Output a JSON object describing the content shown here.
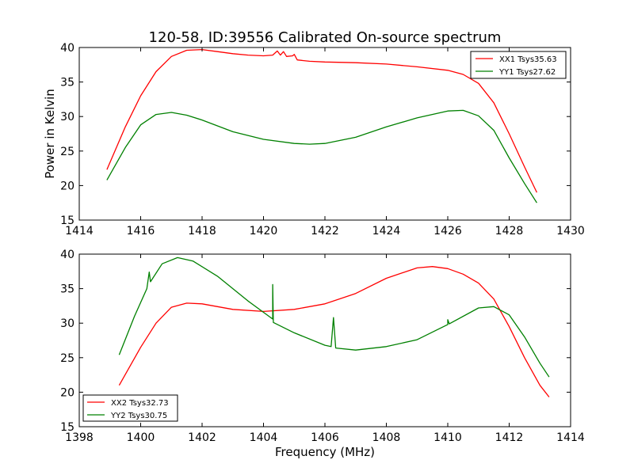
{
  "chart_data": [
    {
      "type": "line",
      "title": "120-58, ID:39556 Calibrated On-source spectrum",
      "xlabel": "",
      "ylabel": "Power in Kelvin",
      "xlim": [
        1414,
        1430
      ],
      "ylim": [
        15,
        40
      ],
      "xticks": [
        1414,
        1416,
        1418,
        1420,
        1422,
        1424,
        1426,
        1428,
        1430
      ],
      "yticks": [
        15,
        20,
        25,
        30,
        35,
        40
      ],
      "legend_position": "top-right",
      "series": [
        {
          "name": "XX1 Tsys35.63",
          "color": "#ff0000",
          "points": [
            [
              1414.9,
              22.3
            ],
            [
              1415.5,
              28.5
            ],
            [
              1416.0,
              33.0
            ],
            [
              1416.5,
              36.5
            ],
            [
              1417.0,
              38.7
            ],
            [
              1417.5,
              39.6
            ],
            [
              1418.0,
              39.7
            ],
            [
              1418.5,
              39.4
            ],
            [
              1419.0,
              39.1
            ],
            [
              1419.5,
              38.9
            ],
            [
              1420.0,
              38.8
            ],
            [
              1420.3,
              38.9
            ],
            [
              1420.45,
              39.5
            ],
            [
              1420.55,
              38.9
            ],
            [
              1420.65,
              39.4
            ],
            [
              1420.75,
              38.7
            ],
            [
              1420.95,
              38.8
            ],
            [
              1421.0,
              39.0
            ],
            [
              1421.1,
              38.2
            ],
            [
              1421.5,
              38.0
            ],
            [
              1422.0,
              37.9
            ],
            [
              1423.0,
              37.8
            ],
            [
              1424.0,
              37.6
            ],
            [
              1425.0,
              37.2
            ],
            [
              1426.0,
              36.7
            ],
            [
              1426.5,
              36.1
            ],
            [
              1427.0,
              34.8
            ],
            [
              1427.5,
              32.0
            ],
            [
              1428.0,
              27.5
            ],
            [
              1428.5,
              22.7
            ],
            [
              1428.9,
              19.0
            ]
          ]
        },
        {
          "name": "YY1 Tsys27.62",
          "color": "#008000",
          "points": [
            [
              1414.9,
              20.8
            ],
            [
              1415.5,
              25.5
            ],
            [
              1416.0,
              28.8
            ],
            [
              1416.5,
              30.3
            ],
            [
              1417.0,
              30.6
            ],
            [
              1417.5,
              30.2
            ],
            [
              1418.0,
              29.5
            ],
            [
              1419.0,
              27.8
            ],
            [
              1420.0,
              26.7
            ],
            [
              1421.0,
              26.1
            ],
            [
              1421.5,
              26.0
            ],
            [
              1422.0,
              26.1
            ],
            [
              1423.0,
              27.0
            ],
            [
              1424.0,
              28.5
            ],
            [
              1425.0,
              29.8
            ],
            [
              1426.0,
              30.8
            ],
            [
              1426.5,
              30.9
            ],
            [
              1427.0,
              30.1
            ],
            [
              1427.5,
              28.0
            ],
            [
              1428.0,
              24.0
            ],
            [
              1428.5,
              20.3
            ],
            [
              1428.9,
              17.5
            ]
          ]
        }
      ]
    },
    {
      "type": "line",
      "title": "",
      "xlabel": "Frequency (MHz)",
      "ylabel": "",
      "xlim": [
        1398,
        1414
      ],
      "ylim": [
        15,
        40
      ],
      "xticks": [
        1398,
        1400,
        1402,
        1404,
        1406,
        1408,
        1410,
        1412,
        1414
      ],
      "yticks": [
        15,
        20,
        25,
        30,
        35,
        40
      ],
      "legend_position": "bottom-left",
      "series": [
        {
          "name": "XX2 Tsys32.73",
          "color": "#ff0000",
          "points": [
            [
              1399.3,
              21.0
            ],
            [
              1400.0,
              26.5
            ],
            [
              1400.5,
              30.0
            ],
            [
              1401.0,
              32.3
            ],
            [
              1401.5,
              32.9
            ],
            [
              1402.0,
              32.8
            ],
            [
              1403.0,
              32.0
            ],
            [
              1404.0,
              31.7
            ],
            [
              1405.0,
              32.0
            ],
            [
              1406.0,
              32.8
            ],
            [
              1407.0,
              34.3
            ],
            [
              1408.0,
              36.5
            ],
            [
              1409.0,
              38.0
            ],
            [
              1409.5,
              38.2
            ],
            [
              1410.0,
              37.9
            ],
            [
              1410.5,
              37.1
            ],
            [
              1411.0,
              35.8
            ],
            [
              1411.5,
              33.5
            ],
            [
              1412.0,
              29.5
            ],
            [
              1412.5,
              25.0
            ],
            [
              1413.0,
              21.0
            ],
            [
              1413.3,
              19.3
            ]
          ]
        },
        {
          "name": "YY2 Tsys30.75",
          "color": "#008000",
          "points": [
            [
              1399.3,
              25.4
            ],
            [
              1399.8,
              31.0
            ],
            [
              1400.2,
              35.0
            ],
            [
              1400.28,
              37.4
            ],
            [
              1400.32,
              36.0
            ],
            [
              1400.7,
              38.6
            ],
            [
              1401.2,
              39.5
            ],
            [
              1401.7,
              39.0
            ],
            [
              1402.5,
              36.8
            ],
            [
              1403.5,
              33.2
            ],
            [
              1404.3,
              30.6
            ],
            [
              1404.3,
              35.6
            ],
            [
              1404.32,
              30.1
            ],
            [
              1405.0,
              28.6
            ],
            [
              1406.0,
              26.8
            ],
            [
              1406.2,
              26.6
            ],
            [
              1406.28,
              30.8
            ],
            [
              1406.35,
              26.4
            ],
            [
              1407.0,
              26.1
            ],
            [
              1408.0,
              26.6
            ],
            [
              1409.0,
              27.6
            ],
            [
              1410.0,
              29.8
            ],
            [
              1410.0,
              30.5
            ],
            [
              1410.05,
              29.9
            ],
            [
              1411.0,
              32.2
            ],
            [
              1411.5,
              32.4
            ],
            [
              1412.0,
              31.2
            ],
            [
              1412.5,
              28.0
            ],
            [
              1413.0,
              24.2
            ],
            [
              1413.3,
              22.2
            ]
          ]
        }
      ]
    }
  ]
}
